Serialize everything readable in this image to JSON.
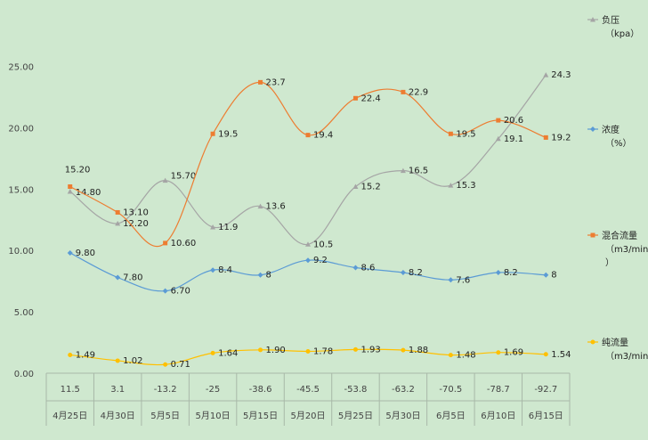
{
  "chart_data": {
    "type": "line",
    "categories_top": [
      "11.5",
      "3.1",
      "-13.2",
      "-25",
      "-38.6",
      "-45.5",
      "-53.8",
      "-63.2",
      "-70.5",
      "-78.7",
      "-92.7"
    ],
    "categories_bottom": [
      "4月25日",
      "4月30日",
      "5月5日",
      "5月10日",
      "5月15日",
      "5月20日",
      "5月25日",
      "5月30日",
      "6月5日",
      "6月10日",
      "6月15日"
    ],
    "yticks": [
      "0.00",
      "5.00",
      "10.00",
      "15.00",
      "20.00",
      "25.00"
    ],
    "ylim": [
      0,
      27.5
    ],
    "grid": false,
    "legend_position": "right",
    "series": [
      {
        "name_lines": [
          "负压",
          "（kpa）"
        ],
        "color": "#a5a5a5",
        "marker": "triangle",
        "values": [
          14.8,
          12.2,
          15.7,
          11.9,
          13.6,
          10.5,
          15.2,
          16.5,
          15.3,
          19.1,
          24.3
        ],
        "labels": [
          "14.80",
          "12.20",
          "15.70",
          "11.9",
          "13.6",
          "10.5",
          "15.2",
          "16.5",
          "15.3",
          "19.1",
          "24.3"
        ]
      },
      {
        "name_lines": [
          "浓度",
          "（%）"
        ],
        "color": "#5b9bd5",
        "marker": "diamond",
        "values": [
          9.8,
          7.8,
          6.7,
          8.4,
          8.0,
          9.2,
          8.6,
          8.2,
          7.6,
          8.2,
          8.0
        ],
        "labels": [
          "9.80",
          "7.80",
          "6.70",
          "8.4",
          "8",
          "9.2",
          "8.6",
          "8.2",
          "7.6",
          "8.2",
          "8"
        ]
      },
      {
        "name_lines": [
          "混合流量",
          "（m3/min",
          "）"
        ],
        "color": "#ed7d31",
        "marker": "square",
        "values": [
          15.2,
          13.1,
          10.6,
          19.5,
          23.7,
          19.4,
          22.4,
          22.9,
          19.5,
          20.6,
          19.2
        ],
        "labels": [
          "15.20",
          "13.10",
          "10.60",
          "19.5",
          "23.7",
          "19.4",
          "22.4",
          "22.9",
          "19.5",
          "20.6",
          "19.2"
        ]
      },
      {
        "name_lines": [
          "纯流量",
          "（m3/min"
        ],
        "color": "#ffc000",
        "marker": "circle",
        "values": [
          1.49,
          1.02,
          0.71,
          1.64,
          1.9,
          1.78,
          1.93,
          1.88,
          1.48,
          1.69,
          1.54
        ],
        "labels": [
          "1.49",
          "1.02",
          "0.71",
          "1.64",
          "1.90",
          "1.78",
          "1.93",
          "1.88",
          "1.48",
          "1.69",
          "1.54"
        ]
      }
    ]
  }
}
